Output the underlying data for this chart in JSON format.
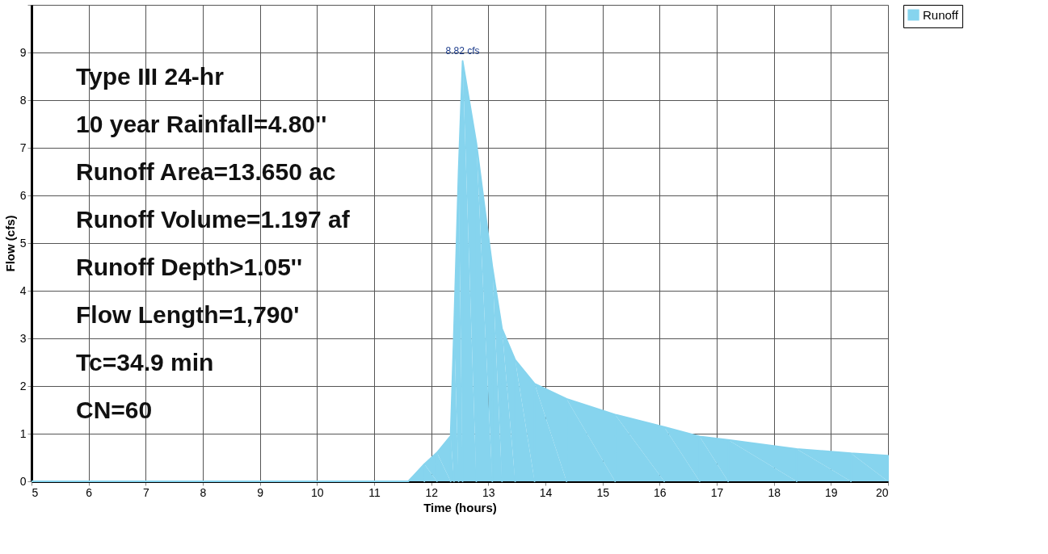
{
  "chart_data": {
    "type": "area",
    "xlabel": "Time  (hours)",
    "ylabel": "Flow  (cfs)",
    "xlim": [
      5,
      20
    ],
    "xticks": [
      5,
      6,
      7,
      8,
      9,
      10,
      11,
      12,
      13,
      14,
      15,
      16,
      17,
      18,
      19,
      20
    ],
    "ylim": [
      0,
      10
    ],
    "yticks": [
      0,
      1,
      2,
      3,
      4,
      5,
      6,
      7,
      8,
      9,
      {
        "value": 10,
        "label": null
      }
    ],
    "grid": true,
    "legend": "right",
    "series": [
      {
        "name": "Runoff",
        "color": "#86d4ee",
        "x": [
          5,
          11.6,
          11.88,
          12.1,
          12.34,
          12.4,
          12.48,
          12.55,
          12.79,
          13.07,
          13.24,
          13.47,
          13.81,
          14.37,
          15.22,
          16.08,
          16.7,
          17.2,
          18.4,
          19.35,
          20
        ],
        "values": [
          0,
          0,
          0.36,
          0.6,
          0.95,
          3.2,
          6.5,
          8.82,
          7.1,
          4.5,
          3.2,
          2.55,
          2.05,
          1.73,
          1.4,
          1.14,
          0.94,
          0.87,
          0.68,
          0.59,
          0.54
        ]
      }
    ],
    "annotations": [
      "Type III 24-hr",
      "10 year Rainfall=4.80''",
      "Runoff Area=13.650 ac",
      "Runoff Volume=1.197 af",
      "Runoff Depth>1.05''",
      "Flow Length=1,790'",
      "Tc=34.9 min",
      "CN=60",
      {
        "text": "8.82 cfs",
        "x": 12.55,
        "y": 8.82
      }
    ]
  }
}
